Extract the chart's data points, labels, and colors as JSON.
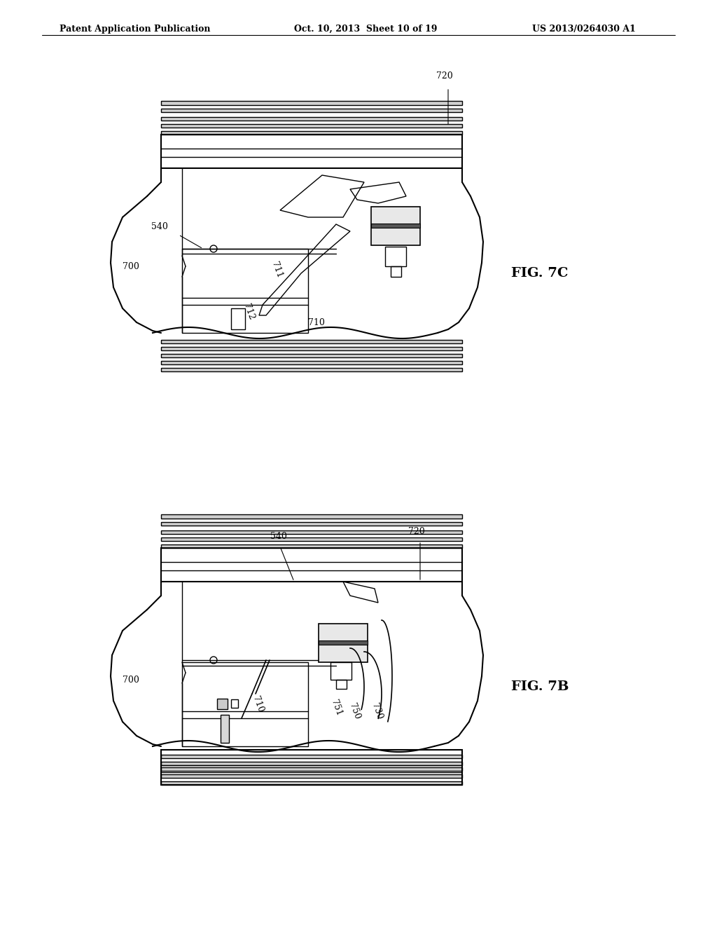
{
  "header_left": "Patent Application Publication",
  "header_mid": "Oct. 10, 2013  Sheet 10 of 19",
  "header_right": "US 2013/0264030 A1",
  "fig_7c_label": "FIG. 7C",
  "fig_7b_label": "FIG. 7B",
  "bg_color": "#ffffff",
  "line_color": "#000000",
  "gray_color": "#888888",
  "light_gray": "#cccccc",
  "header_fontsize": 9,
  "label_fontsize": 9,
  "fig_label_fontsize": 12
}
